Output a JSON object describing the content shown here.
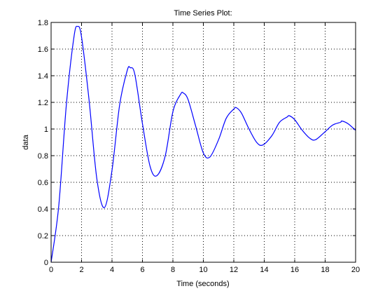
{
  "chart_data": {
    "type": "line",
    "title": "Time Series Plot:",
    "xlabel": "Time (seconds)",
    "ylabel": "data",
    "xlim": [
      0,
      20
    ],
    "ylim": [
      0,
      1.8
    ],
    "xticks": [
      0,
      2,
      4,
      6,
      8,
      10,
      12,
      14,
      16,
      18,
      20
    ],
    "yticks": [
      0,
      0.2,
      0.4,
      0.6,
      0.8,
      1,
      1.2,
      1.4,
      1.6,
      1.8
    ],
    "xtick_labels": [
      "0",
      "2",
      "4",
      "6",
      "8",
      "10",
      "12",
      "14",
      "16",
      "18",
      "20"
    ],
    "ytick_labels": [
      "0",
      "0.2",
      "0.4",
      "0.6",
      "0.8",
      "1",
      "1.2",
      "1.4",
      "1.6",
      "1.8"
    ],
    "grid": true,
    "grid_style": "dotted",
    "series": [
      {
        "color": "#0000ff",
        "x": [
          0,
          0.5,
          1.0,
          1.5,
          1.74,
          2.0,
          2.5,
          3.0,
          3.5,
          4.0,
          4.5,
          5.0,
          5.2,
          5.5,
          6.0,
          6.5,
          6.95,
          7.5,
          8.0,
          8.5,
          8.69,
          9.0,
          9.5,
          10.0,
          10.43,
          11.0,
          11.5,
          12.0,
          12.17,
          12.5,
          13.0,
          13.5,
          13.9,
          14.5,
          15.0,
          15.5,
          15.64,
          16.0,
          16.5,
          17.0,
          17.38,
          18.0,
          18.5,
          19.0,
          19.1,
          19.5,
          20.0
        ],
        "y": [
          0,
          0.42,
          1.18,
          1.69,
          1.77,
          1.69,
          1.21,
          0.63,
          0.41,
          0.69,
          1.18,
          1.44,
          1.46,
          1.41,
          1.04,
          0.72,
          0.65,
          0.8,
          1.13,
          1.26,
          1.27,
          1.22,
          1.02,
          0.82,
          0.79,
          0.92,
          1.08,
          1.15,
          1.16,
          1.12,
          1.0,
          0.9,
          0.88,
          0.95,
          1.05,
          1.09,
          1.1,
          1.07,
          0.99,
          0.93,
          0.92,
          0.98,
          1.03,
          1.05,
          1.06,
          1.04,
          0.99
        ]
      }
    ]
  }
}
